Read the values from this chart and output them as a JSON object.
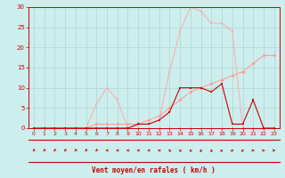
{
  "xlabel": "Vent moyen/en rafales ( km/h )",
  "xlim": [
    -0.5,
    23.5
  ],
  "ylim": [
    0,
    30
  ],
  "yticks": [
    0,
    5,
    10,
    15,
    20,
    25,
    30
  ],
  "xticks": [
    0,
    1,
    2,
    3,
    4,
    5,
    6,
    7,
    8,
    9,
    10,
    11,
    12,
    13,
    14,
    15,
    16,
    17,
    18,
    19,
    20,
    21,
    22,
    23
  ],
  "bg_color": "#cceeed",
  "grid_color": "#aacccc",
  "line1_x": [
    0,
    1,
    2,
    3,
    4,
    5,
    6,
    7,
    8,
    9,
    10,
    11,
    12,
    13,
    14,
    15,
    16,
    17,
    18,
    19,
    20,
    21,
    22,
    23
  ],
  "line1_y": [
    0,
    0,
    0,
    0,
    0,
    0,
    1,
    1,
    1,
    1,
    1,
    2,
    3,
    5,
    7,
    9,
    10,
    11,
    12,
    13,
    14,
    16,
    18,
    18
  ],
  "line1_color": "#ff9999",
  "line2_x": [
    0,
    1,
    2,
    3,
    4,
    5,
    6,
    7,
    8,
    9,
    10,
    11,
    12,
    13,
    14,
    15,
    16,
    17,
    18,
    19,
    20,
    21,
    22,
    23
  ],
  "line2_y": [
    0,
    0,
    0,
    0,
    0,
    0,
    6,
    10,
    7,
    0,
    1,
    1,
    2,
    14,
    24,
    30,
    29,
    26,
    26,
    24,
    0,
    0,
    0,
    0
  ],
  "line2_color": "#ffaaaa",
  "line3_x": [
    0,
    1,
    2,
    3,
    4,
    5,
    6,
    7,
    8,
    9,
    10,
    11,
    12,
    13,
    14,
    15,
    16,
    17,
    18,
    19,
    20,
    21,
    22,
    23
  ],
  "line3_y": [
    0,
    0,
    0,
    0,
    0,
    0,
    0,
    0,
    0,
    0,
    1,
    1,
    2,
    4,
    10,
    10,
    10,
    9,
    11,
    1,
    1,
    7,
    0,
    0
  ],
  "line3_color": "#cc0000",
  "line4_x": [
    0,
    1,
    2,
    3,
    4,
    5,
    6,
    7,
    8,
    9,
    10,
    11,
    12,
    13,
    14,
    15,
    16,
    17,
    18,
    19,
    20,
    21,
    22,
    23
  ],
  "line4_y": [
    0,
    0,
    0,
    0,
    0,
    0,
    0,
    0,
    0,
    0,
    0,
    0,
    0,
    0,
    0,
    0,
    0,
    0,
    0,
    0,
    0,
    0,
    0,
    0
  ],
  "line4_color": "#ff0000",
  "arrow_angles_deg": [
    225,
    225,
    225,
    225,
    225,
    225,
    225,
    270,
    270,
    270,
    270,
    270,
    270,
    315,
    315,
    315,
    0,
    0,
    45,
    45,
    45,
    90,
    90,
    90
  ]
}
